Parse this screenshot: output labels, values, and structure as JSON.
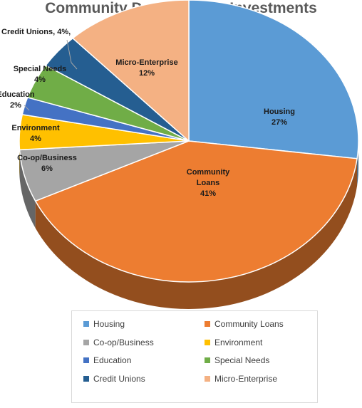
{
  "chart_data": {
    "type": "pie",
    "title": "Community Development Investments",
    "slices": [
      {
        "name": "Housing",
        "value": 27,
        "color": "#5b9bd5",
        "label_lines": [
          "Housing",
          "27%"
        ]
      },
      {
        "name": "Community Loans",
        "value": 41,
        "color": "#ed7d31",
        "label_lines": [
          "Community",
          "Loans",
          "41%"
        ]
      },
      {
        "name": "Co-op/Business",
        "value": 6,
        "color": "#a5a5a5",
        "label_lines": [
          "Co-op/Business",
          "6%"
        ]
      },
      {
        "name": "Environment",
        "value": 4,
        "color": "#ffc000",
        "label_lines": [
          "Environment",
          "4%"
        ]
      },
      {
        "name": "Education",
        "value": 2,
        "color": "#4472c4",
        "label_lines": [
          "Education",
          "2%"
        ]
      },
      {
        "name": "Special Needs",
        "value": 4,
        "color": "#70ad47",
        "label_lines": [
          "Special Needs",
          "4%"
        ]
      },
      {
        "name": "Credit Unions",
        "value": 4,
        "color": "#255e91",
        "label_lines": [
          "Credit Unions, 4%,"
        ]
      },
      {
        "name": "Micro-Enterprise",
        "value": 12,
        "color": "#f4b183",
        "label_lines": [
          "Micro-Enterprise",
          "12%"
        ]
      }
    ],
    "legend": {
      "position": "bottom",
      "items": [
        "Housing",
        "Community Loans",
        "Co-op/Business",
        "Environment",
        "Education",
        "Special Needs",
        "Credit Unions",
        "Micro-Enterprise"
      ]
    }
  }
}
